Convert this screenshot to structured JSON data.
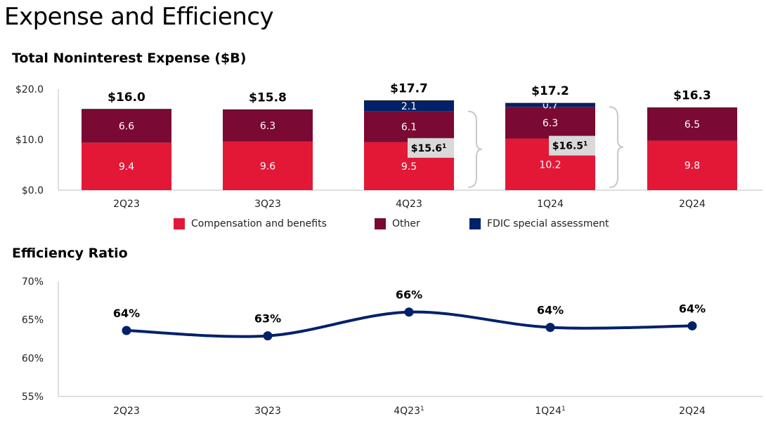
{
  "page": {
    "title": "Expense and Efficiency"
  },
  "chart_data": [
    {
      "type": "bar",
      "stacked": true,
      "title": "Total Noninterest Expense ($B)",
      "categories": [
        "2Q23",
        "3Q23",
        "4Q23",
        "1Q24",
        "2Q24"
      ],
      "series": [
        {
          "name": "Compensation and benefits",
          "color": "#e31837",
          "values": [
            9.4,
            9.6,
            9.5,
            10.2,
            9.8
          ]
        },
        {
          "name": "Other",
          "color": "#7a0a33",
          "values": [
            6.6,
            6.3,
            6.1,
            6.3,
            6.5
          ]
        },
        {
          "name": "FDIC special assessment",
          "color": "#012169",
          "values": [
            0,
            0,
            2.1,
            0.7,
            0
          ]
        }
      ],
      "totals": [
        "$16.0",
        "$15.8",
        "$17.7",
        "$17.2",
        "$16.3"
      ],
      "segment_labels": [
        [
          "9.4",
          "6.6",
          ""
        ],
        [
          "9.6",
          "6.3",
          ""
        ],
        [
          "9.5",
          "6.1",
          "2.1"
        ],
        [
          "10.2",
          "6.3",
          "0.7"
        ],
        [
          "9.8",
          "6.5",
          ""
        ]
      ],
      "ylim": [
        0,
        20
      ],
      "yticks": [
        "$0.0",
        "$10.0",
        "$20.0"
      ],
      "annotations": [
        {
          "after_category": "4Q23",
          "value": 15.6,
          "text": "$15.6",
          "superscript": "1"
        },
        {
          "after_category": "1Q24",
          "value": 16.5,
          "text": "$16.5",
          "superscript": "1"
        }
      ],
      "legend_position": "bottom"
    },
    {
      "type": "line",
      "title": "Efficiency Ratio",
      "categories": [
        "2Q23",
        "3Q23",
        "4Q23",
        "1Q24",
        "2Q24"
      ],
      "category_superscripts": [
        "",
        "",
        "1",
        "1",
        ""
      ],
      "values": [
        63.6,
        62.9,
        66.0,
        64.0,
        64.2
      ],
      "labels": [
        "64%",
        "63%",
        "66%",
        "64%",
        "64%"
      ],
      "color": "#012169",
      "ylim": [
        55,
        70
      ],
      "yticks": [
        "55%",
        "60%",
        "65%",
        "70%"
      ]
    }
  ]
}
